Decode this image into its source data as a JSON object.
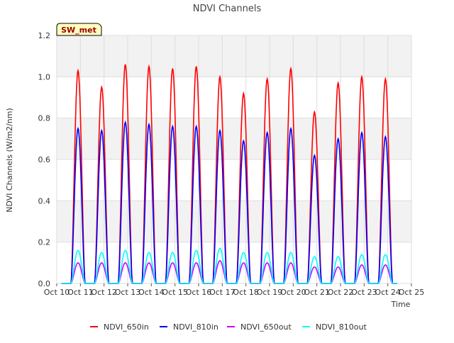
{
  "chart_data": {
    "type": "line",
    "title": "NDVI Channels",
    "ylabel": "NDVI Channels (W/m2/nm)",
    "xlabel": "Time",
    "badge": "SW_met",
    "ylim": [
      0.0,
      1.2
    ],
    "yticks": [
      "0.0",
      "0.2",
      "0.4",
      "0.6",
      "0.8",
      "1.0",
      "1.2"
    ],
    "xlim": [
      "2023-10-10",
      "2023-10-25"
    ],
    "xticks": [
      "Oct 10",
      "Oct 11",
      "Oct 12",
      "Oct 13",
      "Oct 14",
      "Oct 15",
      "Oct 16",
      "Oct 17",
      "Oct 18",
      "Oct 19",
      "Oct 20",
      "Oct 21",
      "Oct 22",
      "Oct 23",
      "Oct 24",
      "Oct 25"
    ],
    "grid": true,
    "legend_position": "bottom",
    "days": [
      "2023-10-11",
      "2023-10-12",
      "2023-10-13",
      "2023-10-14",
      "2023-10-15",
      "2023-10-16",
      "2023-10-17",
      "2023-10-18",
      "2023-10-19",
      "2023-10-20",
      "2023-10-21",
      "2023-10-22",
      "2023-10-23",
      "2023-10-24"
    ],
    "series": [
      {
        "name": "NDVI_650in",
        "color": "#ff0000",
        "daily_peak": [
          1.03,
          0.95,
          1.06,
          1.05,
          1.04,
          1.05,
          1.0,
          0.92,
          0.99,
          1.04,
          0.83,
          0.97,
          1.0,
          0.99
        ]
      },
      {
        "name": "NDVI_810in",
        "color": "#0000ff",
        "daily_peak": [
          0.75,
          0.74,
          0.78,
          0.77,
          0.76,
          0.76,
          0.74,
          0.69,
          0.73,
          0.75,
          0.62,
          0.7,
          0.73,
          0.71
        ]
      },
      {
        "name": "NDVI_650out",
        "color": "#cc00ff",
        "daily_peak": [
          0.1,
          0.1,
          0.1,
          0.1,
          0.1,
          0.1,
          0.11,
          0.1,
          0.1,
          0.1,
          0.08,
          0.08,
          0.09,
          0.09
        ]
      },
      {
        "name": "NDVI_810out",
        "color": "#00ffff",
        "daily_peak": [
          0.16,
          0.15,
          0.16,
          0.15,
          0.15,
          0.16,
          0.17,
          0.15,
          0.15,
          0.15,
          0.13,
          0.13,
          0.14,
          0.14
        ]
      }
    ]
  }
}
